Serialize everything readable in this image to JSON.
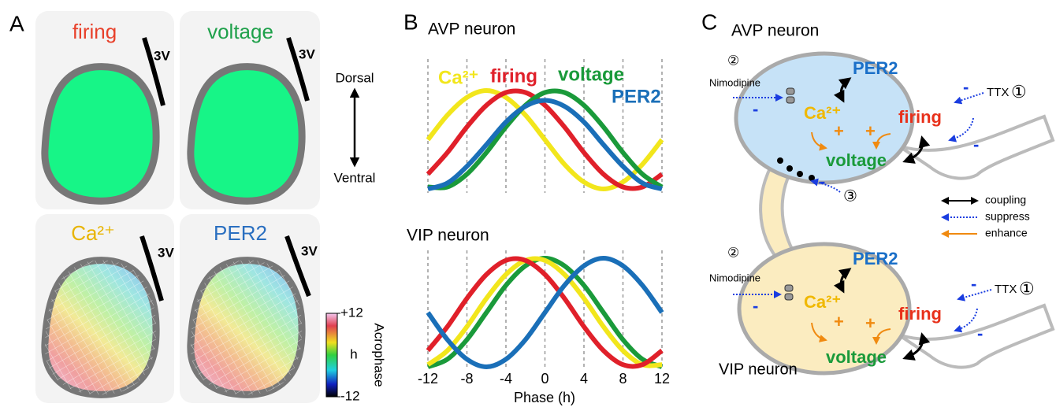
{
  "panel_a": {
    "label": "A",
    "maps": [
      {
        "label": "firing"
      },
      {
        "label": "voltage"
      },
      {
        "label": "Ca²⁺"
      },
      {
        "label": "PER2"
      }
    ],
    "ventricle": "3V",
    "dorsal": "Dorsal",
    "ventral": "Ventral",
    "colorbar": {
      "title": "Acrophase",
      "unit": "h",
      "lim": [
        -12,
        12
      ],
      "ticks": [
        {
          "value": 12,
          "label": "+12"
        },
        -12
      ]
    }
  },
  "panel_b": {
    "label": "B"
  },
  "chart_data": [
    {
      "type": "line",
      "title": "AVP neuron",
      "x": [
        -12,
        -10,
        -8,
        -6,
        -4,
        -2,
        0,
        2,
        4,
        6,
        8,
        10,
        12
      ],
      "xlim": [
        -12,
        12
      ],
      "ylim": [
        0,
        1
      ],
      "grid": true,
      "series": [
        {
          "name": "Ca²⁺",
          "color": "#f2e61c",
          "values": [
            0.5,
            0.75,
            0.93,
            1,
            0.93,
            0.75,
            0.5,
            0.25,
            0.07,
            0,
            0.07,
            0.25,
            0.5
          ]
        },
        {
          "name": "firing",
          "color": "#e0202a",
          "values": [
            0.15,
            0.37,
            0.63,
            0.85,
            0.98,
            0.98,
            0.85,
            0.63,
            0.37,
            0.15,
            0.02,
            0.02,
            0.15
          ]
        },
        {
          "name": "voltage",
          "color": "#1a9a3a",
          "values": [
            0.02,
            0.02,
            0.15,
            0.37,
            0.63,
            0.85,
            0.98,
            0.98,
            0.85,
            0.63,
            0.37,
            0.15,
            0.02
          ]
        },
        {
          "name": "PER2",
          "color": "#1a6fb8",
          "values": [
            0,
            0.06,
            0.23,
            0.45,
            0.68,
            0.84,
            0.9,
            0.84,
            0.68,
            0.45,
            0.23,
            0.06,
            0
          ]
        }
      ]
    },
    {
      "type": "line",
      "title": "VIP neuron",
      "xlabel": "Phase (h)",
      "x": [
        -12,
        -10,
        -8,
        -6,
        -4,
        -2,
        0,
        2,
        4,
        6,
        8,
        10,
        12
      ],
      "xlim": [
        -12,
        12
      ],
      "ylim": [
        0,
        1
      ],
      "xticks": [
        -12,
        -8,
        -4,
        0,
        4,
        8,
        12
      ],
      "grid": true,
      "series": [
        {
          "color": "#1a9a3a",
          "values": [
            0,
            0.07,
            0.25,
            0.5,
            0.75,
            0.93,
            1,
            0.93,
            0.75,
            0.5,
            0.25,
            0.07,
            0
          ]
        },
        {
          "color": "#f2e61c",
          "values": [
            0.02,
            0.15,
            0.37,
            0.63,
            0.85,
            0.98,
            0.98,
            0.85,
            0.63,
            0.37,
            0.15,
            0.02,
            0.02
          ]
        },
        {
          "color": "#e0202a",
          "values": [
            0.15,
            0.37,
            0.63,
            0.85,
            0.98,
            0.98,
            0.85,
            0.63,
            0.37,
            0.15,
            0.02,
            0.02,
            0.15
          ]
        },
        {
          "color": "#1a6fb8",
          "values": [
            0.5,
            0.25,
            0.07,
            0,
            0.07,
            0.25,
            0.5,
            0.75,
            0.93,
            1,
            0.93,
            0.75,
            0.5
          ]
        }
      ]
    }
  ],
  "panel_c": {
    "label": "C",
    "plus": "+",
    "minus": "-",
    "gap_site": "③",
    "cells": [
      {
        "title": "AVP neuron",
        "per2": "PER2",
        "ca": "Ca²⁺",
        "firing": "firing",
        "voltage": "voltage",
        "nimodipine": "Nimodipine",
        "ttx": "TTX",
        "site_nimodipine": "②",
        "site_ttx": "①"
      },
      {
        "title": "VIP neuron",
        "per2": "PER2",
        "ca": "Ca²⁺",
        "firing": "firing",
        "voltage": "voltage",
        "nimodipine": "Nimodipine",
        "ttx": "TTX",
        "site_nimodipine": "②",
        "site_ttx": "①"
      }
    ],
    "legend": [
      {
        "label": "coupling"
      },
      {
        "label": "suppress"
      },
      {
        "label": "enhance"
      }
    ]
  }
}
